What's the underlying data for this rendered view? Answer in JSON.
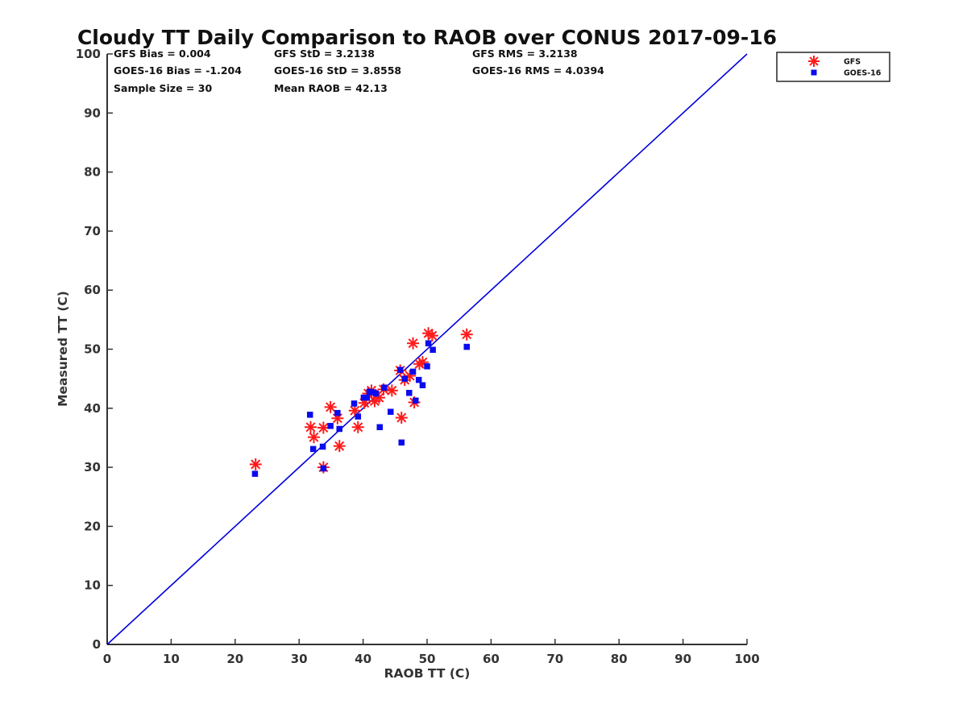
{
  "chart_data": {
    "type": "scatter",
    "title": "Cloudy TT Daily Comparison to RAOB over CONUS 2017-09-16",
    "xlabel": "RAOB TT (C)",
    "ylabel": "Measured TT (C)",
    "xlim": [
      0,
      100
    ],
    "ylim": [
      0,
      100
    ],
    "xticks": [
      "0",
      "10",
      "20",
      "30",
      "40",
      "50",
      "60",
      "70",
      "80",
      "90",
      "100"
    ],
    "yticks": [
      "0",
      "10",
      "20",
      "30",
      "40",
      "50",
      "60",
      "70",
      "80",
      "90",
      "100"
    ],
    "grid": false,
    "legend_position": "outside-top-right",
    "reference_line": {
      "from": [
        0,
        0
      ],
      "to": [
        100,
        100
      ],
      "color": "#0000dd"
    },
    "stats": [
      [
        "GFS Bias = 0.004",
        "GFS StD = 3.2138",
        "GFS RMS = 3.2138"
      ],
      [
        "GOES-16 Bias = -1.204",
        "GOES-16 StD = 3.8558",
        "GOES-16 RMS = 4.0394"
      ],
      [
        "Sample Size = 30",
        "Mean RAOB = 42.13",
        ""
      ]
    ],
    "series": [
      {
        "name": "GFS",
        "marker": "asterisk",
        "color": "#ff1a1a",
        "points": [
          [
            23.2,
            30.5
          ],
          [
            31.8,
            36.8
          ],
          [
            32.3,
            35.1
          ],
          [
            33.8,
            36.7
          ],
          [
            33.8,
            30.0
          ],
          [
            34.9,
            40.2
          ],
          [
            36.0,
            38.3
          ],
          [
            36.3,
            33.6
          ],
          [
            38.7,
            39.6
          ],
          [
            39.2,
            36.8
          ],
          [
            40.2,
            40.9
          ],
          [
            40.8,
            42.5
          ],
          [
            41.3,
            43.0
          ],
          [
            41.8,
            41.2
          ],
          [
            42.5,
            41.8
          ],
          [
            43.2,
            43.2
          ],
          [
            44.5,
            43.0
          ],
          [
            45.8,
            46.4
          ],
          [
            46.0,
            38.4
          ],
          [
            46.5,
            44.8
          ],
          [
            47.3,
            45.5
          ],
          [
            47.8,
            51.0
          ],
          [
            48.0,
            41.0
          ],
          [
            48.8,
            47.5
          ],
          [
            49.3,
            47.8
          ],
          [
            50.2,
            52.7
          ],
          [
            50.8,
            52.3
          ],
          [
            56.2,
            52.5
          ]
        ]
      },
      {
        "name": "GOES-16",
        "marker": "square",
        "color": "#0a0aee",
        "points": [
          [
            23.1,
            28.9
          ],
          [
            31.7,
            38.9
          ],
          [
            32.2,
            33.1
          ],
          [
            33.7,
            33.5
          ],
          [
            33.8,
            29.8
          ],
          [
            34.9,
            37.0
          ],
          [
            36.0,
            39.2
          ],
          [
            36.3,
            36.5
          ],
          [
            38.6,
            40.8
          ],
          [
            39.2,
            38.6
          ],
          [
            40.1,
            41.8
          ],
          [
            40.6,
            41.8
          ],
          [
            41.0,
            42.8
          ],
          [
            41.6,
            42.7
          ],
          [
            42.0,
            42.5
          ],
          [
            42.6,
            36.8
          ],
          [
            43.3,
            43.5
          ],
          [
            44.3,
            39.4
          ],
          [
            45.8,
            46.5
          ],
          [
            46.0,
            34.2
          ],
          [
            46.5,
            45.0
          ],
          [
            47.2,
            42.6
          ],
          [
            47.8,
            46.2
          ],
          [
            48.2,
            41.3
          ],
          [
            48.7,
            44.8
          ],
          [
            49.3,
            43.9
          ],
          [
            50.0,
            47.1
          ],
          [
            50.2,
            51.0
          ],
          [
            50.9,
            49.9
          ],
          [
            56.2,
            50.4
          ]
        ]
      }
    ]
  }
}
